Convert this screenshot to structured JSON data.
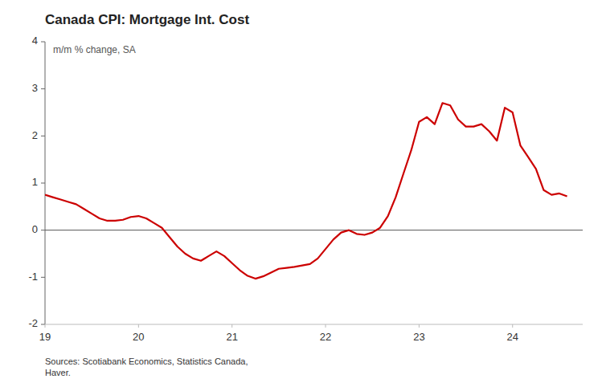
{
  "chart_data": {
    "type": "line",
    "title": "Canada CPI: Mortgage Int. Cost",
    "ylabel": "m/m % change, SA",
    "source": "Sources: Scotiabank Economics, Statistics Canada,\nHaver.",
    "color": "#cc0000",
    "xlim": [
      19.0,
      24.75
    ],
    "ylim": [
      -2,
      4
    ],
    "xticks": [
      19,
      20,
      21,
      22,
      23,
      24
    ],
    "yticks": [
      -2,
      -1,
      0,
      1,
      2,
      3,
      4
    ],
    "x": [
      19.0,
      19.083,
      19.167,
      19.25,
      19.333,
      19.417,
      19.5,
      19.583,
      19.667,
      19.75,
      19.833,
      19.917,
      20.0,
      20.083,
      20.167,
      20.25,
      20.333,
      20.417,
      20.5,
      20.583,
      20.667,
      20.75,
      20.833,
      20.917,
      21.0,
      21.083,
      21.167,
      21.25,
      21.333,
      21.417,
      21.5,
      21.583,
      21.667,
      21.75,
      21.833,
      21.917,
      22.0,
      22.083,
      22.167,
      22.25,
      22.333,
      22.417,
      22.5,
      22.583,
      22.667,
      22.75,
      22.833,
      22.917,
      23.0,
      23.083,
      23.167,
      23.25,
      23.333,
      23.417,
      23.5,
      23.583,
      23.667,
      23.75,
      23.833,
      23.917,
      24.0,
      24.083,
      24.167,
      24.25,
      24.333,
      24.417,
      24.5,
      24.583
    ],
    "values": [
      0.75,
      0.7,
      0.65,
      0.6,
      0.55,
      0.45,
      0.35,
      0.25,
      0.2,
      0.2,
      0.22,
      0.28,
      0.3,
      0.25,
      0.15,
      0.05,
      -0.15,
      -0.35,
      -0.5,
      -0.6,
      -0.65,
      -0.55,
      -0.45,
      -0.55,
      -0.7,
      -0.85,
      -0.97,
      -1.03,
      -0.98,
      -0.9,
      -0.82,
      -0.8,
      -0.78,
      -0.75,
      -0.72,
      -0.6,
      -0.4,
      -0.2,
      -0.05,
      0.0,
      -0.08,
      -0.1,
      -0.05,
      0.05,
      0.3,
      0.7,
      1.2,
      1.7,
      2.3,
      2.4,
      2.25,
      2.7,
      2.65,
      2.35,
      2.2,
      2.2,
      2.25,
      2.1,
      1.9,
      2.6,
      2.5,
      1.8,
      1.55,
      1.3,
      0.85,
      0.75,
      0.78,
      0.72
    ]
  }
}
